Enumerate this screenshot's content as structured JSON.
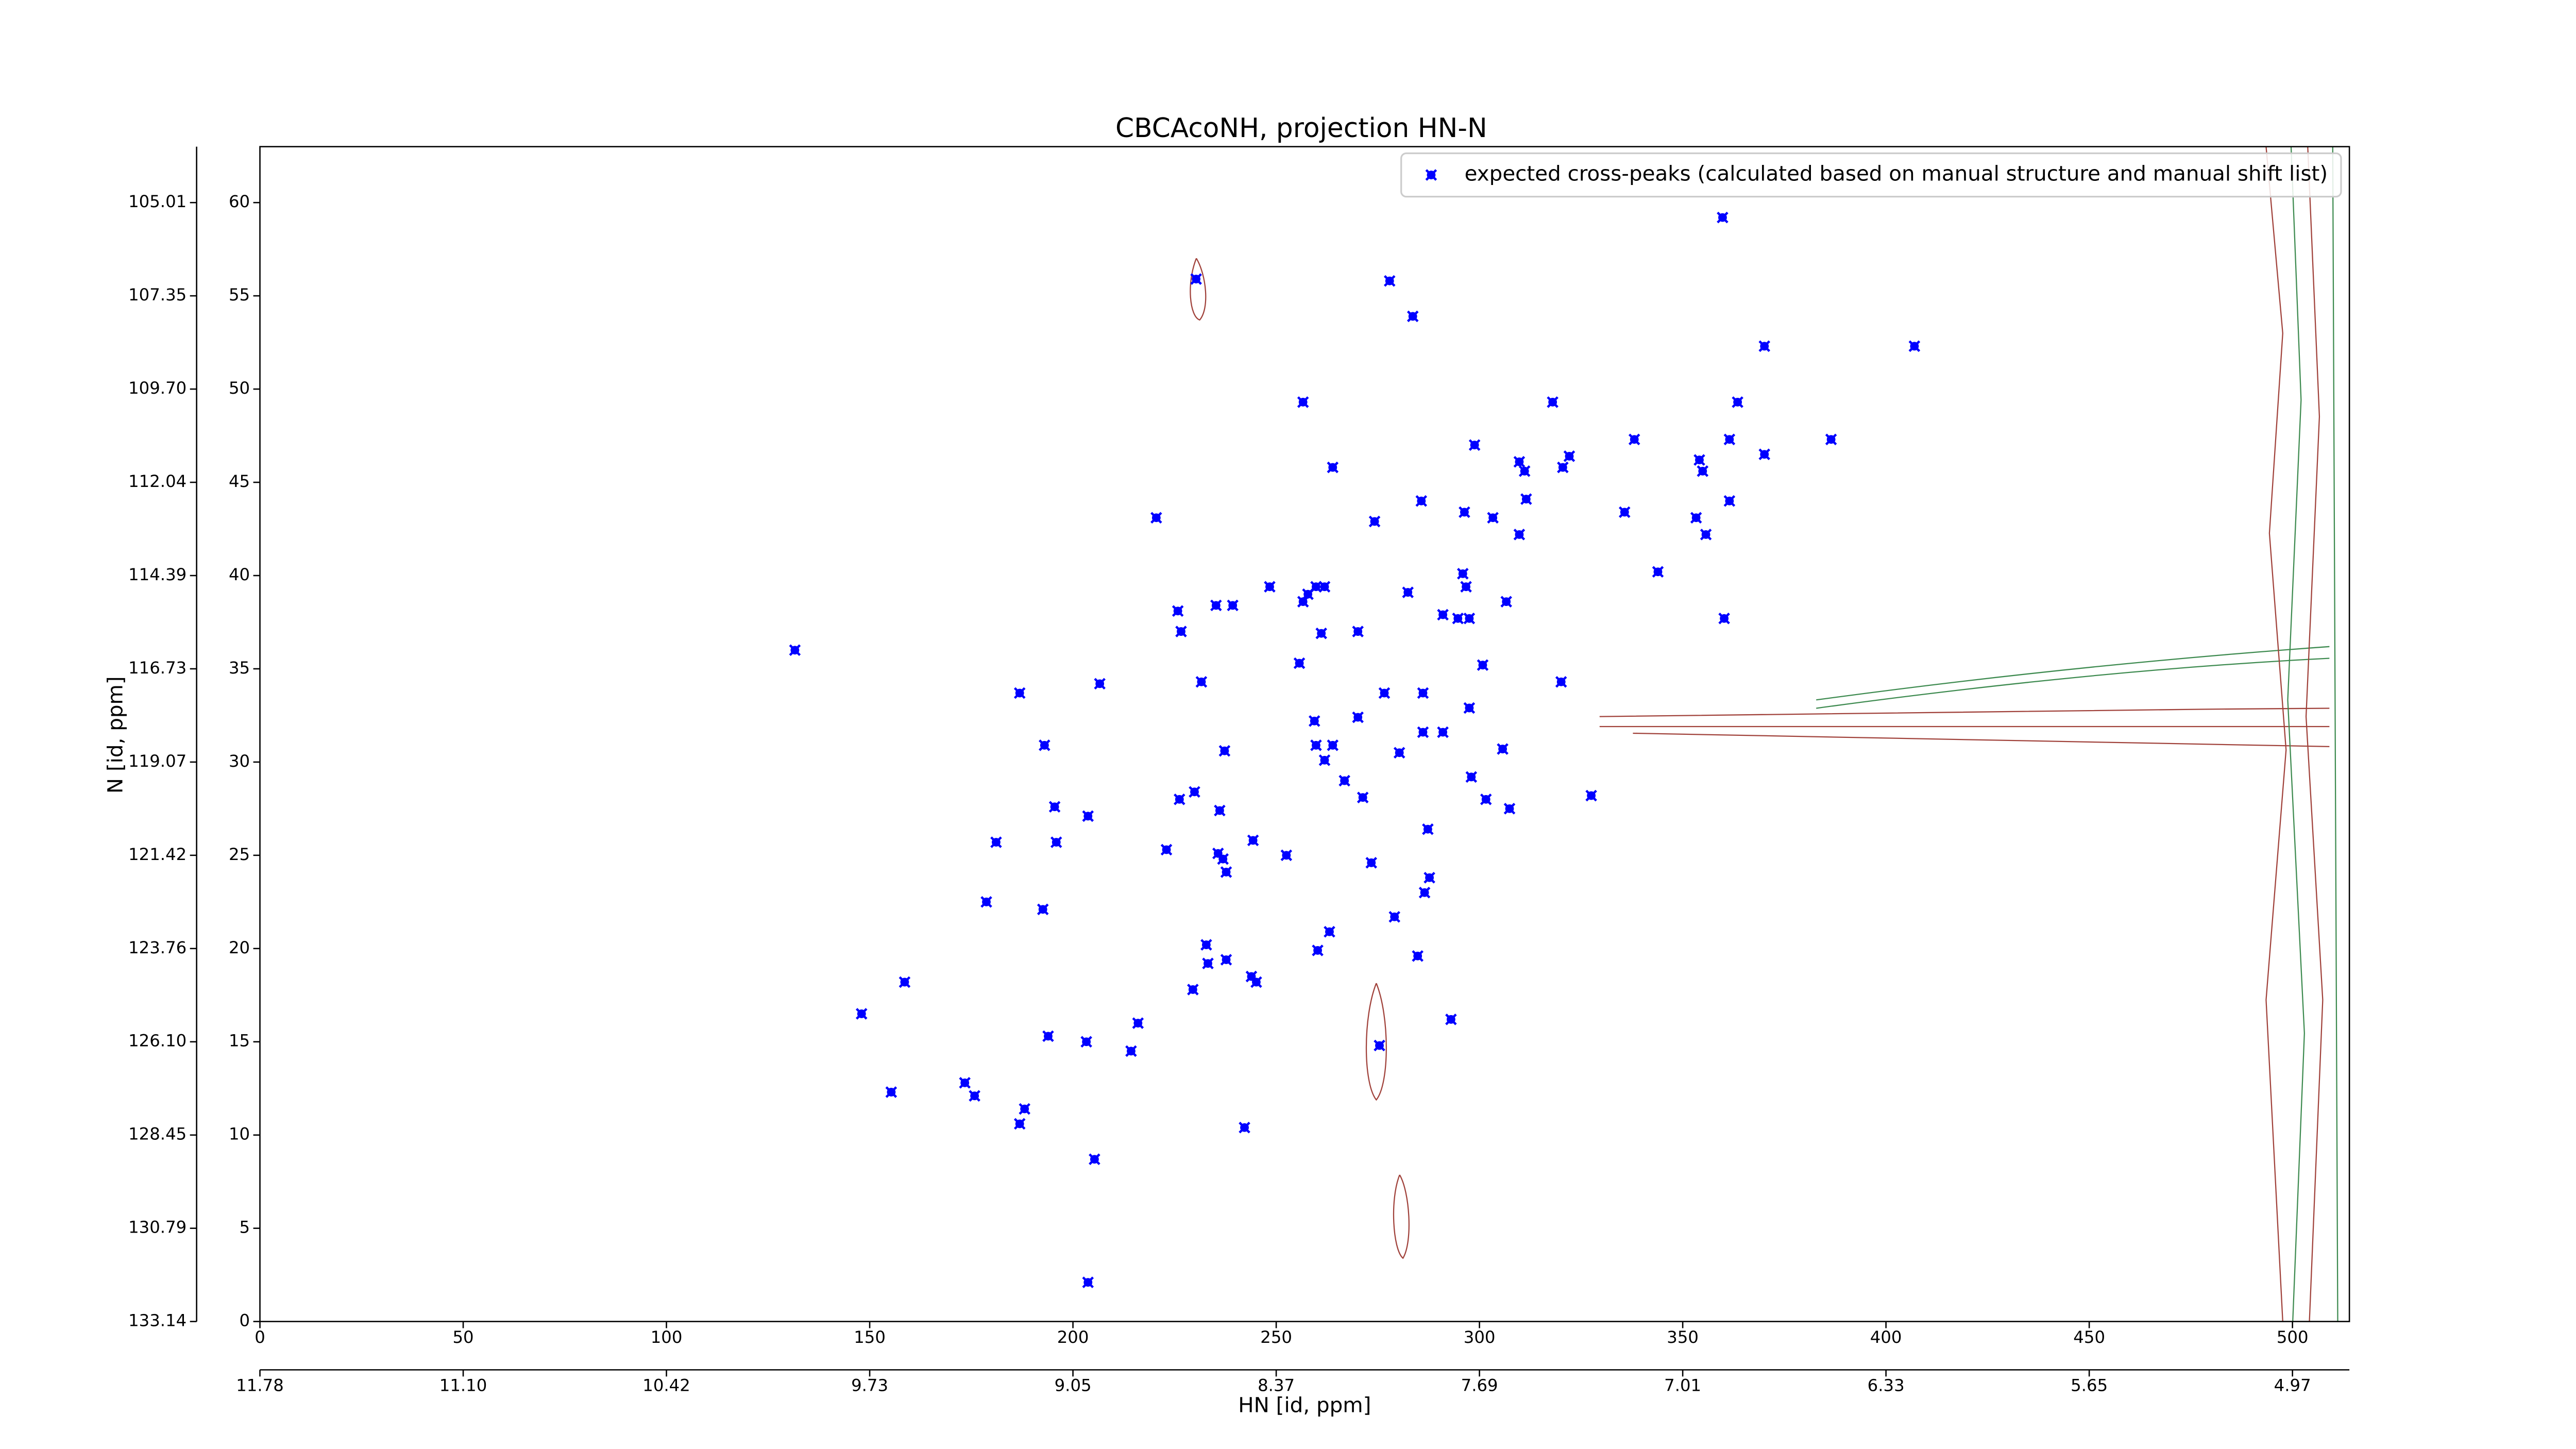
{
  "chart_data": {
    "type": "scatter",
    "title": "CBCAcoNH, projection HN-N",
    "x_label": "HN [id, ppm]",
    "y_label": "N [id, ppm]",
    "xlim": [
      0,
      514
    ],
    "ylim": [
      0,
      63
    ],
    "xticks": [
      0,
      50,
      100,
      150,
      200,
      250,
      300,
      350,
      400,
      450,
      500
    ],
    "yticks": [
      0,
      5,
      10,
      15,
      20,
      25,
      30,
      35,
      40,
      45,
      50,
      55,
      60
    ],
    "xticks_ppm": [
      {
        "value": 0,
        "label": "11.78"
      },
      {
        "value": 50,
        "label": "11.10"
      },
      {
        "value": 100,
        "label": "10.42"
      },
      {
        "value": 150,
        "label": "9.73"
      },
      {
        "value": 200,
        "label": "9.05"
      },
      {
        "value": 250,
        "label": "8.37"
      },
      {
        "value": 300,
        "label": "7.69"
      },
      {
        "value": 350,
        "label": "7.01"
      },
      {
        "value": 400,
        "label": "6.33"
      },
      {
        "value": 450,
        "label": "5.65"
      },
      {
        "value": 500,
        "label": "4.97"
      }
    ],
    "yticks_ppm": [
      {
        "value": 0,
        "label": "133.14"
      },
      {
        "value": 5,
        "label": "130.79"
      },
      {
        "value": 10,
        "label": "128.45"
      },
      {
        "value": 15,
        "label": "126.10"
      },
      {
        "value": 20,
        "label": "123.76"
      },
      {
        "value": 25,
        "label": "121.42"
      },
      {
        "value": 30,
        "label": "119.07"
      },
      {
        "value": 35,
        "label": "116.73"
      },
      {
        "value": 40,
        "label": "114.39"
      },
      {
        "value": 45,
        "label": "112.04"
      },
      {
        "value": 50,
        "label": "109.70"
      },
      {
        "value": 55,
        "label": "107.35"
      },
      {
        "value": 60,
        "label": "105.01"
      }
    ],
    "legend": "upper right",
    "x": [
      131.6,
      230.3,
      277.9,
      283.6,
      359.8,
      370.1,
      407.0,
      256.6,
      318.0,
      363.5,
      298.8,
      338.1,
      386.5,
      361.5,
      322.1,
      309.8,
      354.1,
      370.1,
      263.9,
      311.1,
      320.5,
      354.9,
      361.5,
      285.7,
      311.5,
      220.5,
      274.2,
      296.3,
      303.3,
      335.7,
      353.3,
      355.7,
      309.8,
      343.9,
      248.4,
      235.2,
      239.3,
      256.6,
      259.8,
      257.8,
      261.9,
      282.4,
      295.9,
      296.7,
      291.0,
      294.7,
      297.5,
      306.6,
      360.2,
      225.8,
      226.6,
      270.1,
      261.1,
      255.7,
      300.8,
      231.6,
      186.9,
      206.6,
      320.1,
      276.6,
      286.1,
      297.5,
      270.1,
      259.4,
      286.1,
      291.0,
      259.8,
      263.9,
      193.0,
      237.3,
      261.9,
      280.3,
      305.7,
      298.0,
      266.8,
      195.5,
      203.7,
      327.5,
      229.9,
      226.2,
      236.1,
      307.4,
      301.6,
      271.3,
      287.3,
      195.9,
      181.1,
      244.3,
      235.7,
      223.0,
      236.9,
      252.5,
      237.7,
      273.4,
      287.7,
      286.5,
      178.7,
      192.6,
      263.1,
      279.1,
      232.8,
      260.2,
      237.7,
      233.2,
      245.1,
      243.9,
      229.5,
      284.8,
      158.6,
      148.0,
      193.9,
      203.3,
      216.0,
      214.3,
      275.4,
      293.0,
      155.3,
      173.4,
      175.8,
      188.1,
      186.9,
      205.3,
      242.2,
      203.7
    ],
    "series": [
      {
        "name": "expected cross-peaks (calculated based on manual structure and manual shift list)",
        "color": "#0000ff",
        "values": [
          36.0,
          55.9,
          55.8,
          53.9,
          59.2,
          52.3,
          52.3,
          49.3,
          49.3,
          49.3,
          47.0,
          47.3,
          47.3,
          47.3,
          46.4,
          46.1,
          46.2,
          46.5,
          45.8,
          45.6,
          45.8,
          45.6,
          44.0,
          44.0,
          44.1,
          43.1,
          42.9,
          43.4,
          43.1,
          43.4,
          43.1,
          42.2,
          42.2,
          40.2,
          39.4,
          38.4,
          38.4,
          38.6,
          39.4,
          39.0,
          39.4,
          39.1,
          40.1,
          39.4,
          37.9,
          37.7,
          37.7,
          38.6,
          37.7,
          38.1,
          37.0,
          37.0,
          36.9,
          35.3,
          35.2,
          34.3,
          33.7,
          34.2,
          34.3,
          33.7,
          33.7,
          32.9,
          32.4,
          32.2,
          31.6,
          31.6,
          30.9,
          30.9,
          30.9,
          30.6,
          30.1,
          30.5,
          30.7,
          29.2,
          29.0,
          27.6,
          27.1,
          28.2,
          28.4,
          28.0,
          27.4,
          27.5,
          28.0,
          28.1,
          26.4,
          25.7,
          25.7,
          25.8,
          25.1,
          25.3,
          24.8,
          25.0,
          24.1,
          24.6,
          23.8,
          23.0,
          22.5,
          22.1,
          20.9,
          21.7,
          20.2,
          19.9,
          19.4,
          19.2,
          18.2,
          18.5,
          17.8,
          19.6,
          18.2,
          16.5,
          15.3,
          15.0,
          16.0,
          14.5,
          14.8,
          16.2,
          12.3,
          12.8,
          12.1,
          11.4,
          10.6,
          8.7,
          10.4,
          2.1
        ]
      }
    ]
  }
}
